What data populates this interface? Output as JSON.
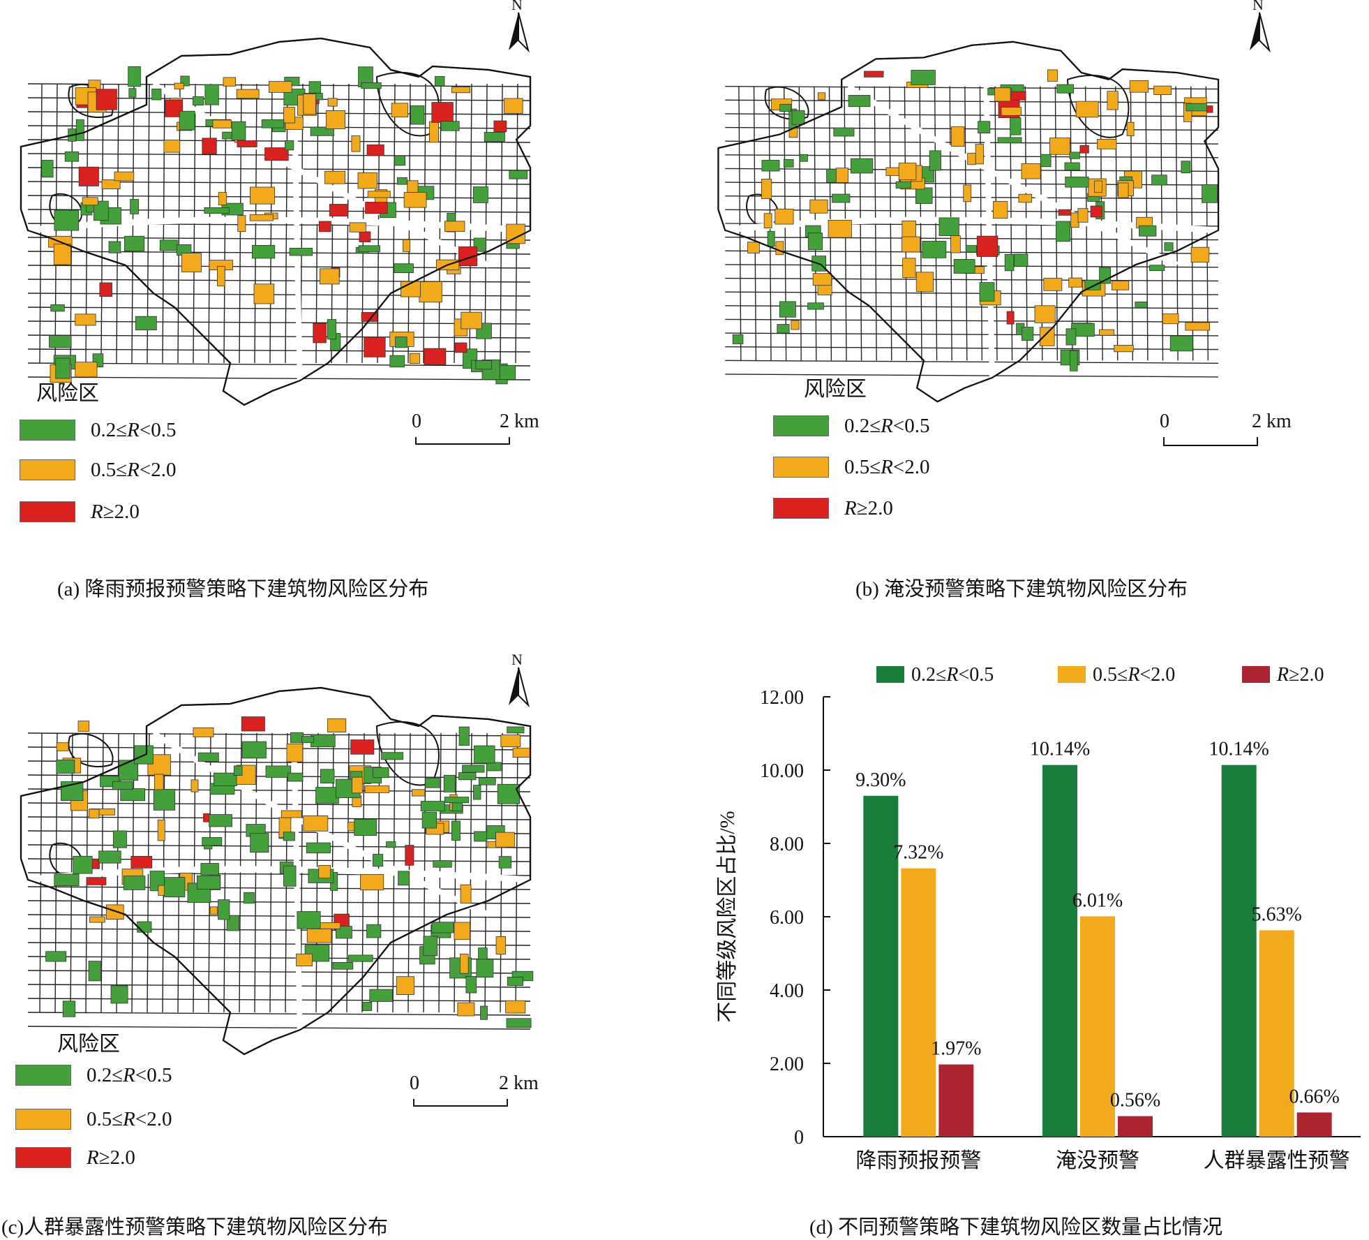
{
  "legend": {
    "title": "风险区",
    "items": [
      {
        "label": "0.2≤R<0.5",
        "color": "#43a03a"
      },
      {
        "label": "0.5≤R<2.0",
        "color": "#f2a91c"
      },
      {
        "label": "R≥2.0",
        "color": "#d9221f"
      }
    ]
  },
  "north_label": "N",
  "scale": {
    "start": "0",
    "end": "2 km"
  },
  "captions": {
    "a": "(a) 降雨预报预警策略下建筑物风险区分布",
    "b": "(b) 淹没预警策略下建筑物风险区分布",
    "c": "(c)人群暴露性预警策略下建筑物风险区分布",
    "d": "(d) 不同预警策略下建筑物风险区数量占比情况"
  },
  "chart_data": {
    "type": "bar",
    "categories": [
      "降雨预报预警",
      "淹没预警",
      "人群暴露性预警"
    ],
    "series": [
      {
        "name": "0.2≤R<0.5",
        "color": "#1a7d3b",
        "values": [
          9.3,
          10.14,
          10.14
        ],
        "labels": [
          "9.30%",
          "10.14%",
          "10.14%"
        ]
      },
      {
        "name": "0.5≤R<2.0",
        "color": "#f2a91c",
        "values": [
          7.32,
          6.01,
          5.63
        ],
        "labels": [
          "7.32%",
          "6.01%",
          "5.63%"
        ]
      },
      {
        "name": "R≥2.0",
        "color": "#ad2431",
        "values": [
          1.97,
          0.56,
          0.66
        ],
        "labels": [
          "1.97%",
          "0.56%",
          "0.66%"
        ]
      }
    ],
    "ylabel": "不同等级风险区占比/%",
    "yticks": [
      "0",
      "2.00",
      "4.00",
      "6.00",
      "8.00",
      "10.00",
      "12.00"
    ],
    "ylim": [
      0,
      12
    ],
    "legend_position": "top",
    "grid": false
  }
}
